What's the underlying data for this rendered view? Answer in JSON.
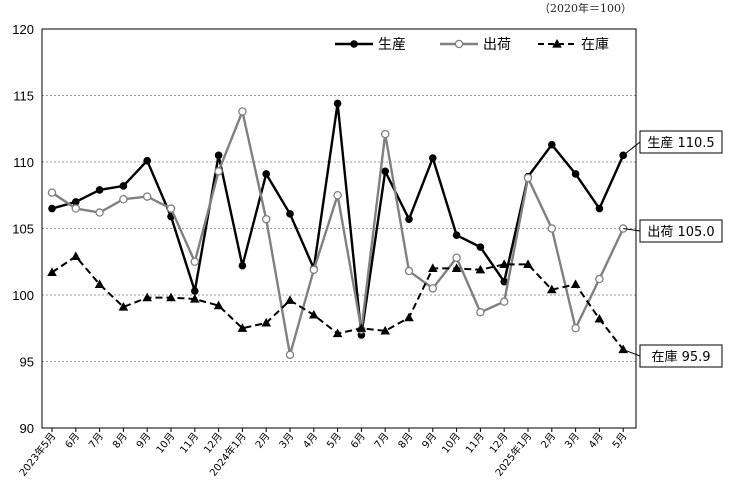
{
  "unit_note": "（2020年＝100）",
  "chart_data": {
    "type": "line",
    "categories": [
      "2023年5月",
      "6月",
      "7月",
      "8月",
      "9月",
      "10月",
      "11月",
      "12月",
      "2024年1月",
      "2月",
      "3月",
      "4月",
      "5月",
      "6月",
      "7月",
      "8月",
      "9月",
      "10月",
      "11月",
      "12月",
      "2025年1月",
      "2月",
      "3月",
      "4月",
      "5月"
    ],
    "ylim": [
      90,
      120
    ],
    "yticks": [
      90,
      95,
      100,
      105,
      110,
      115,
      120
    ],
    "grid": true,
    "legend_position": "top-right",
    "series": [
      {
        "name": "生産",
        "style": "solid",
        "marker": "filled-circle",
        "color": "#000000",
        "values": [
          106.5,
          107.0,
          107.9,
          108.2,
          110.1,
          105.9,
          100.3,
          110.5,
          102.2,
          109.1,
          106.1,
          102.0,
          114.4,
          97.0,
          109.3,
          105.7,
          110.3,
          104.5,
          103.6,
          101.0,
          108.9,
          111.3,
          109.1,
          106.5,
          110.5
        ],
        "end_label": "生産 110.5"
      },
      {
        "name": "出荷",
        "style": "solid",
        "marker": "open-circle",
        "color": "#808080",
        "values": [
          107.7,
          106.5,
          106.2,
          107.2,
          107.4,
          106.5,
          102.5,
          109.3,
          113.8,
          105.7,
          95.5,
          101.9,
          107.5,
          97.4,
          112.1,
          101.8,
          100.5,
          102.8,
          98.7,
          99.5,
          108.8,
          105.0,
          97.5,
          101.2,
          105.0
        ],
        "end_label": "出荷 105.0"
      },
      {
        "name": "在庫",
        "style": "dashed",
        "marker": "filled-triangle",
        "color": "#000000",
        "values": [
          101.7,
          102.9,
          100.8,
          99.1,
          99.8,
          99.8,
          99.7,
          99.2,
          97.5,
          97.9,
          99.6,
          98.5,
          97.1,
          97.5,
          97.3,
          98.3,
          102.0,
          102.0,
          101.9,
          102.3,
          102.3,
          100.4,
          100.8,
          98.2,
          95.9
        ],
        "end_label": "在庫 95.9"
      }
    ]
  }
}
